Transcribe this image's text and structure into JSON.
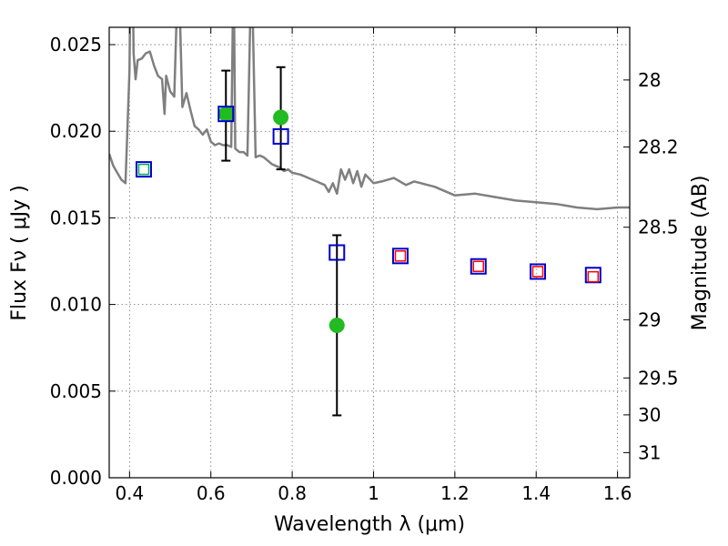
{
  "chart_data": {
    "type": "scatter",
    "title": "",
    "xlabel": "Wavelength  λ (μm)",
    "ylabel": "Flux  Fν  ( μJy )",
    "ylabel_right": "Magnitude (AB)",
    "xlim": [
      0.35,
      1.63
    ],
    "ylim": [
      0.0,
      0.026
    ],
    "grid": true,
    "x_ticks": [
      0.4,
      0.6,
      0.8,
      1.0,
      1.2,
      1.4,
      1.6
    ],
    "x_tick_labels": [
      "0.4",
      "0.6",
      "0.8",
      "1",
      "1.2",
      "1.4",
      "1.6"
    ],
    "y_ticks": [
      0.0,
      0.005,
      0.01,
      0.015,
      0.02,
      0.025
    ],
    "y_tick_labels": [
      "0.000",
      "0.005",
      "0.010",
      "0.015",
      "0.020",
      "0.025"
    ],
    "right_ticks": [
      {
        "flux": 0.02296,
        "label": "28"
      },
      {
        "flux": 0.01909,
        "label": "28.2"
      },
      {
        "flux": 0.01446,
        "label": "28.5"
      },
      {
        "flux": 0.00912,
        "label": "29"
      },
      {
        "flux": 0.00576,
        "label": "29.5"
      },
      {
        "flux": 0.00363,
        "label": "30"
      },
      {
        "flux": 0.00145,
        "label": "31"
      }
    ],
    "colors": {
      "sed": "#7f7f7f",
      "observed": "#22bb22",
      "model_open": "#0000cc",
      "model_small": "#ff0000",
      "model_small_green": "#00aa55",
      "errorbar": "#000000"
    },
    "sed_model": {
      "x": [
        0.35,
        0.36,
        0.37,
        0.38,
        0.39,
        0.4,
        0.405,
        0.41,
        0.415,
        0.42,
        0.43,
        0.44,
        0.45,
        0.46,
        0.47,
        0.48,
        0.486,
        0.49,
        0.5,
        0.51,
        0.52,
        0.53,
        0.54,
        0.55,
        0.56,
        0.57,
        0.58,
        0.59,
        0.6,
        0.61,
        0.62,
        0.63,
        0.64,
        0.65,
        0.656,
        0.66,
        0.67,
        0.68,
        0.69,
        0.7,
        0.71,
        0.72,
        0.73,
        0.74,
        0.75,
        0.76,
        0.77,
        0.78,
        0.79,
        0.8,
        0.82,
        0.84,
        0.86,
        0.88,
        0.89,
        0.9,
        0.91,
        0.92,
        0.93,
        0.94,
        0.95,
        0.96,
        0.97,
        0.98,
        1.0,
        1.02,
        1.05,
        1.08,
        1.1,
        1.15,
        1.2,
        1.25,
        1.3,
        1.35,
        1.4,
        1.45,
        1.5,
        1.55,
        1.6,
        1.63
      ],
      "y": [
        0.0187,
        0.018,
        0.0176,
        0.0172,
        0.017,
        0.0235,
        0.036,
        0.0245,
        0.023,
        0.0241,
        0.0242,
        0.0245,
        0.0246,
        0.0238,
        0.0232,
        0.023,
        0.021,
        0.0232,
        0.0223,
        0.022,
        0.03,
        0.0214,
        0.0222,
        0.0212,
        0.0203,
        0.0201,
        0.0198,
        0.0201,
        0.0194,
        0.0192,
        0.0193,
        0.0192,
        0.0192,
        0.0191,
        0.03,
        0.019,
        0.0188,
        0.0188,
        0.0186,
        0.03,
        0.0185,
        0.0186,
        0.0185,
        0.0183,
        0.0181,
        0.018,
        0.0179,
        0.0177,
        0.0178,
        0.0176,
        0.0175,
        0.0173,
        0.0171,
        0.0169,
        0.0165,
        0.017,
        0.0164,
        0.0178,
        0.0172,
        0.0178,
        0.017,
        0.0177,
        0.0168,
        0.0175,
        0.017,
        0.0171,
        0.0173,
        0.0169,
        0.0171,
        0.0168,
        0.0163,
        0.0164,
        0.0162,
        0.016,
        0.0159,
        0.0158,
        0.0156,
        0.0155,
        0.0156,
        0.0156
      ]
    },
    "observed": [
      {
        "x": 0.637,
        "y": 0.021,
        "err_low": 0.0183,
        "err_high": 0.0235
      },
      {
        "x": 0.772,
        "y": 0.0208,
        "err_low": 0.0178,
        "err_high": 0.0237
      },
      {
        "x": 0.91,
        "y": 0.0088,
        "err_low": 0.0036,
        "err_high": 0.014
      }
    ],
    "model_open_squares": [
      {
        "x": 0.435,
        "y": 0.0178
      },
      {
        "x": 0.637,
        "y": 0.021
      },
      {
        "x": 0.772,
        "y": 0.0197
      },
      {
        "x": 0.91,
        "y": 0.013
      },
      {
        "x": 1.066,
        "y": 0.0128
      },
      {
        "x": 1.258,
        "y": 0.0122
      },
      {
        "x": 1.404,
        "y": 0.0119
      },
      {
        "x": 1.54,
        "y": 0.0117
      }
    ],
    "model_small_squares": [
      {
        "x": 0.435,
        "y": 0.0178,
        "color": "green"
      },
      {
        "x": 1.066,
        "y": 0.0128,
        "color": "red"
      },
      {
        "x": 1.258,
        "y": 0.0122,
        "color": "red"
      },
      {
        "x": 1.404,
        "y": 0.0119,
        "color": "red"
      },
      {
        "x": 1.54,
        "y": 0.0116,
        "color": "red"
      }
    ]
  }
}
